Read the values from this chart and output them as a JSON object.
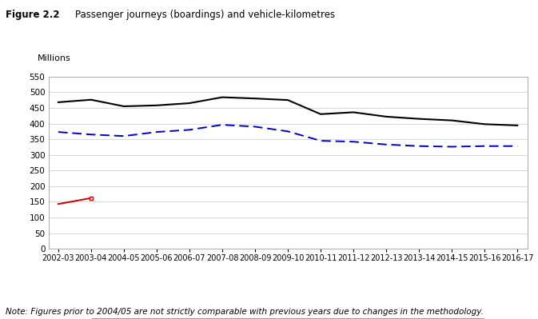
{
  "title_fig": "Figure 2.2",
  "title_main": "Passenger journeys (boardings) and vehicle-kilometres",
  "note": "Note: Figures prior to 2004/05 are not strictly comparable with previous years due to changes in the methodology.",
  "ylabel": "Millions",
  "years": [
    "2002-03",
    "2003-04",
    "2004-05",
    "2005-06",
    "2006-07",
    "2007-08",
    "2008-09",
    "2009-10",
    "2010-11",
    "2011-12",
    "2012-13",
    "2013-14",
    "2014-15",
    "2015-16",
    "2016-17"
  ],
  "local_bus_passengers": [
    468,
    476,
    455,
    458,
    465,
    484,
    480,
    475,
    430,
    436,
    422,
    415,
    410,
    398,
    394
  ],
  "veh_kms_local": [
    373,
    365,
    360,
    373,
    380,
    396,
    390,
    375,
    345,
    342,
    333,
    328,
    326,
    328,
    328
  ],
  "veh_kms_other": [
    143,
    162,
    null,
    null,
    null,
    null,
    null,
    null,
    null,
    null,
    null,
    null,
    null,
    null,
    null
  ],
  "ylim": [
    0,
    550
  ],
  "yticks": [
    0,
    50,
    100,
    150,
    200,
    250,
    300,
    350,
    400,
    450,
    500,
    550
  ],
  "line_color_bus": "#000000",
  "line_color_local": "#0000cc",
  "line_color_other": "#cc0000",
  "background_color": "#ffffff",
  "plot_bg_color": "#ffffff",
  "grid_color": "#d0d0d0"
}
